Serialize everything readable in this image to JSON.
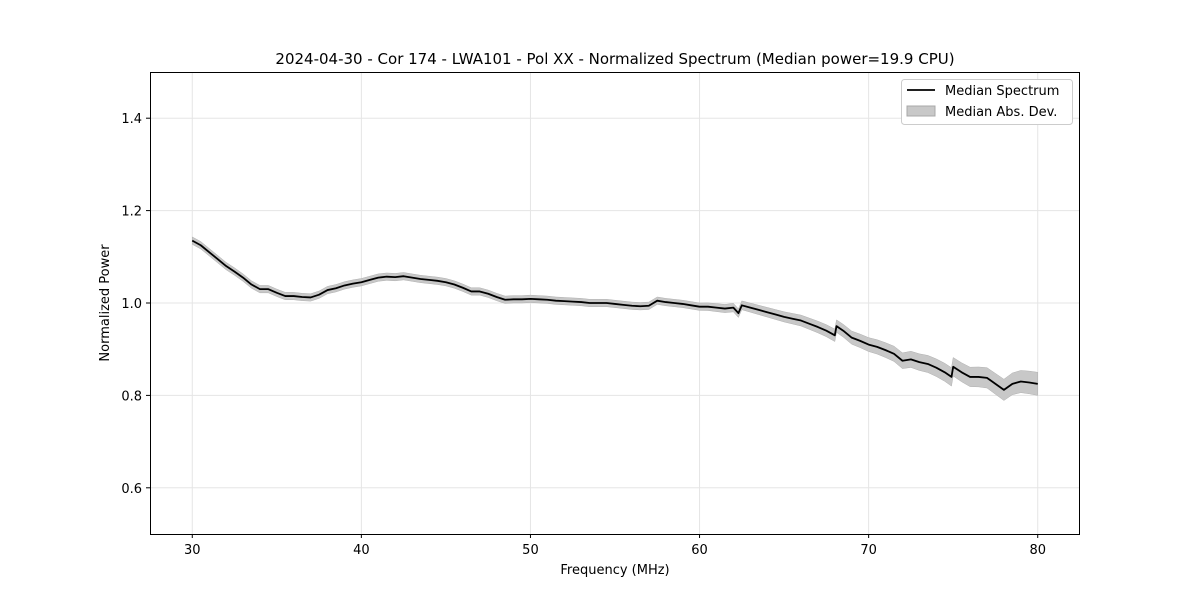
{
  "chart_data": {
    "type": "line",
    "title": "2024-04-30 - Cor 174 - LWA101 - Pol XX - Normalized Spectrum (Median power=19.9 CPU)",
    "xlabel": "Frequency (MHz)",
    "ylabel": "Normalized Power",
    "xlim": [
      27.5,
      82.5
    ],
    "ylim": [
      0.5,
      1.5
    ],
    "xticks": [
      30,
      40,
      50,
      60,
      70,
      80
    ],
    "xtick_labels": [
      "30",
      "40",
      "50",
      "60",
      "70",
      "80"
    ],
    "yticks": [
      0.6,
      0.8,
      1.0,
      1.2,
      1.4
    ],
    "ytick_labels": [
      "0.6",
      "0.8",
      "1.0",
      "1.2",
      "1.4"
    ],
    "grid": true,
    "legend": {
      "placement": "top-right",
      "entries": [
        "Median Spectrum",
        "Median Abs. Dev."
      ]
    },
    "series": [
      {
        "name": "Median Spectrum",
        "color": "#000000",
        "x": [
          30,
          30.5,
          31,
          31.5,
          32,
          32.5,
          33,
          33.5,
          34,
          34.5,
          35,
          35.5,
          36,
          36.5,
          37,
          37.5,
          38,
          38.5,
          39,
          39.5,
          40,
          40.5,
          41,
          41.5,
          42,
          42.5,
          43,
          43.5,
          44,
          44.5,
          45,
          45.5,
          46,
          46.5,
          47,
          47.5,
          48,
          48.5,
          49,
          49.5,
          50,
          50.5,
          51,
          51.5,
          52,
          52.5,
          53,
          53.5,
          54,
          54.5,
          55,
          55.5,
          56,
          56.5,
          57,
          57.5,
          58,
          58.5,
          59,
          59.5,
          60,
          60.5,
          61,
          61.5,
          62,
          62.3,
          62.5,
          63,
          63.5,
          64,
          64.5,
          65,
          65.5,
          66,
          66.5,
          67,
          67.5,
          68,
          68.1,
          68.5,
          69,
          69.5,
          70,
          70.5,
          71,
          71.5,
          72,
          72.5,
          73,
          73.5,
          74,
          74.5,
          74.9,
          75,
          75.5,
          76,
          76.5,
          77,
          77.5,
          78,
          78.5,
          79,
          79.5,
          80
        ],
        "y": [
          1.135,
          1.125,
          1.11,
          1.095,
          1.08,
          1.068,
          1.055,
          1.04,
          1.03,
          1.03,
          1.022,
          1.015,
          1.015,
          1.013,
          1.012,
          1.018,
          1.028,
          1.032,
          1.038,
          1.042,
          1.045,
          1.05,
          1.055,
          1.057,
          1.056,
          1.058,
          1.055,
          1.052,
          1.05,
          1.048,
          1.045,
          1.04,
          1.033,
          1.025,
          1.025,
          1.02,
          1.013,
          1.007,
          1.008,
          1.008,
          1.009,
          1.008,
          1.007,
          1.005,
          1.004,
          1.003,
          1.002,
          1.0,
          1.0,
          1.0,
          0.998,
          0.996,
          0.994,
          0.993,
          0.994,
          1.005,
          1.002,
          1.0,
          0.998,
          0.995,
          0.992,
          0.992,
          0.99,
          0.988,
          0.99,
          0.978,
          0.995,
          0.99,
          0.985,
          0.98,
          0.975,
          0.97,
          0.966,
          0.962,
          0.955,
          0.948,
          0.94,
          0.93,
          0.95,
          0.94,
          0.925,
          0.918,
          0.91,
          0.905,
          0.898,
          0.89,
          0.875,
          0.878,
          0.872,
          0.868,
          0.86,
          0.85,
          0.84,
          0.862,
          0.85,
          0.84,
          0.84,
          0.838,
          0.825,
          0.812,
          0.825,
          0.83,
          0.828,
          0.825
        ]
      },
      {
        "name": "Median Abs. Dev.",
        "color": "#c8c8c8",
        "mad_x": [
          30,
          60,
          65,
          70,
          75,
          80
        ],
        "mad": [
          0.008,
          0.008,
          0.011,
          0.015,
          0.02,
          0.025
        ]
      }
    ]
  }
}
